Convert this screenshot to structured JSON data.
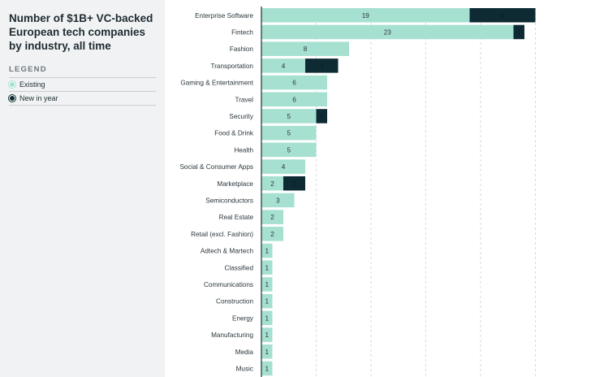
{
  "title": "Number of $1B+ VC-backed European tech companies by industry, all time",
  "legend": {
    "title": "LEGEND",
    "items": [
      {
        "label": "Existing",
        "color": "#a5e0d0"
      },
      {
        "label": "New in year",
        "color": "#0e2a33"
      }
    ]
  },
  "chart_data": {
    "type": "bar",
    "orientation": "horizontal",
    "stacked": true,
    "categories": [
      "Enterprise Software",
      "Fintech",
      "Fashion",
      "Transportation",
      "Gaming & Entertainment",
      "Travel",
      "Security",
      "Food & Drink",
      "Health",
      "Social & Consumer Apps",
      "Marketplace",
      "Semiconductors",
      "Real Estate",
      "Retail (excl. Fashion)",
      "Adtech & Martech",
      "Classified",
      "Communications",
      "Construction",
      "Energy",
      "Manufacturing",
      "Media",
      "Music"
    ],
    "series": [
      {
        "name": "Existing",
        "color": "#a5e0d0",
        "values": [
          19,
          23,
          8,
          4,
          6,
          6,
          5,
          5,
          5,
          4,
          2,
          3,
          2,
          2,
          1,
          1,
          1,
          1,
          1,
          1,
          1,
          1
        ]
      },
      {
        "name": "New in year",
        "color": "#0e2a33",
        "values": [
          6,
          1,
          0,
          3,
          0,
          0,
          1,
          0,
          0,
          0,
          2,
          0,
          0,
          0,
          0,
          0,
          0,
          0,
          0,
          0,
          0,
          0
        ]
      }
    ],
    "xlim": [
      0,
      25
    ],
    "grid": true
  }
}
